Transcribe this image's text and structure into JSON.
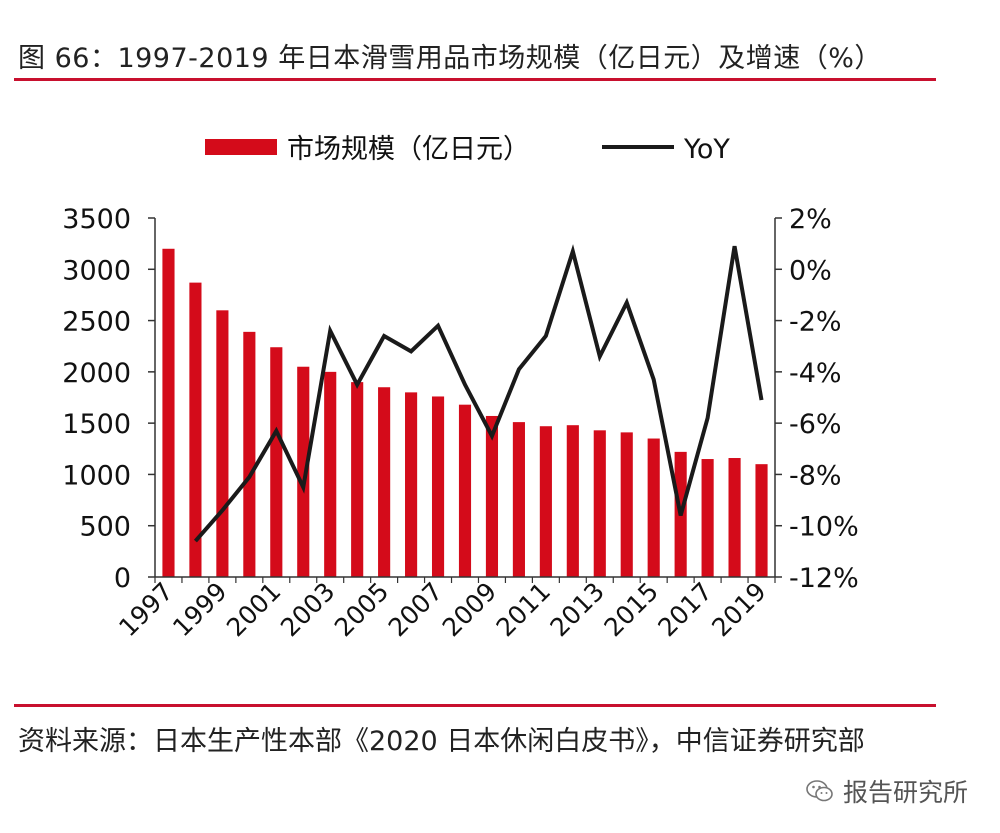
{
  "header": {
    "title": "图 66：1997-2019 年日本滑雪用品市场规模（亿日元）及增速（%）"
  },
  "footer": {
    "source": "资料来源：日本生产性本部《2020 日本休闲白皮书》，中信证券研究部",
    "watermark": "报告研究所"
  },
  "colors": {
    "bar": "#d40b1a",
    "line": "#1a1a1a",
    "rule": "#c8102e"
  },
  "icons": {
    "watermark": "wechat-icon"
  },
  "chart_data": {
    "type": "bar+line",
    "title": "",
    "legend": {
      "position": "top-center",
      "entries": [
        "市场规模（亿日元）",
        "YoY"
      ]
    },
    "x": [
      1997,
      1998,
      1999,
      2000,
      2001,
      2002,
      2003,
      2004,
      2005,
      2006,
      2007,
      2008,
      2009,
      2010,
      2011,
      2012,
      2013,
      2014,
      2015,
      2016,
      2017,
      2018,
      2019
    ],
    "x_tick_labels": [
      "1997",
      "1999",
      "2001",
      "2003",
      "2005",
      "2007",
      "2009",
      "2011",
      "2013",
      "2015",
      "2017",
      "2019"
    ],
    "series": [
      {
        "name": "市场规模（亿日元）",
        "type": "bar",
        "axis": "left",
        "values": [
          3200,
          2870,
          2600,
          2390,
          2240,
          2050,
          2000,
          1900,
          1850,
          1800,
          1760,
          1680,
          1570,
          1510,
          1470,
          1480,
          1430,
          1410,
          1350,
          1220,
          1150,
          1160,
          1100
        ]
      },
      {
        "name": "YoY",
        "type": "line",
        "axis": "right",
        "values": [
          null,
          -10.6,
          -9.4,
          -8.1,
          -6.3,
          -8.5,
          -2.4,
          -4.5,
          -2.6,
          -3.2,
          -2.2,
          -4.5,
          -6.5,
          -3.9,
          -2.6,
          0.7,
          -3.4,
          -1.3,
          -4.3,
          -9.6,
          -5.8,
          0.9,
          -5.1
        ]
      }
    ],
    "y_left": {
      "min": 0,
      "max": 3500,
      "ticks": [
        0,
        500,
        1000,
        1500,
        2000,
        2500,
        3000,
        3500
      ]
    },
    "y_right": {
      "min": -12,
      "max": 2,
      "ticks": [
        -12,
        -10,
        -8,
        -6,
        -4,
        -2,
        0,
        2
      ],
      "tick_labels": [
        "-12%",
        "-10%",
        "-8%",
        "-6%",
        "-4%",
        "-2%",
        "0%",
        "2%"
      ]
    },
    "grid": false
  }
}
